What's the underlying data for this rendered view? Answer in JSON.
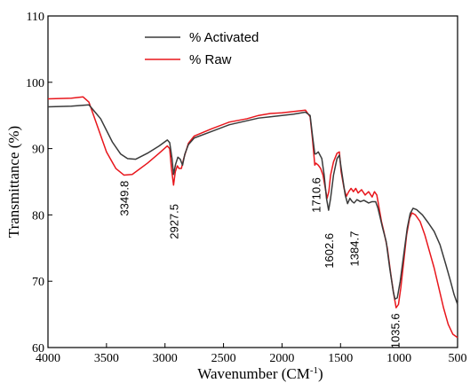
{
  "chart_data": {
    "type": "line",
    "xlabel": "Wavenumber (CM",
    "xlabel_sup": "-1",
    "xlabel_close": ")",
    "ylabel": "Transmittance (%)",
    "xlim": [
      4000,
      500
    ],
    "ylim": [
      60,
      110
    ],
    "x_reversed": true,
    "x_ticks": [
      "4000",
      "3500",
      "3000",
      "2500",
      "2000",
      "1500",
      "1000",
      "500"
    ],
    "y_ticks": [
      "60",
      "70",
      "80",
      "90",
      "100",
      "110"
    ],
    "grid": false,
    "legend_position": "top-center",
    "series": [
      {
        "name": "% Activated",
        "color": "#3a3a3a",
        "points": [
          [
            4000,
            96.3
          ],
          [
            3800,
            96.4
          ],
          [
            3650,
            96.6
          ],
          [
            3550,
            94.5
          ],
          [
            3450,
            91.0
          ],
          [
            3380,
            89.2
          ],
          [
            3320,
            88.5
          ],
          [
            3250,
            88.4
          ],
          [
            3150,
            89.3
          ],
          [
            3050,
            90.4
          ],
          [
            2980,
            91.3
          ],
          [
            2960,
            90.9
          ],
          [
            2940,
            88.5
          ],
          [
            2927,
            86.1
          ],
          [
            2910,
            87.6
          ],
          [
            2890,
            88.7
          ],
          [
            2870,
            88.4
          ],
          [
            2850,
            87.5
          ],
          [
            2830,
            89.2
          ],
          [
            2800,
            90.6
          ],
          [
            2750,
            91.6
          ],
          [
            2600,
            92.6
          ],
          [
            2450,
            93.6
          ],
          [
            2300,
            94.2
          ],
          [
            2200,
            94.6
          ],
          [
            2100,
            94.8
          ],
          [
            2000,
            95.0
          ],
          [
            1900,
            95.2
          ],
          [
            1800,
            95.5
          ],
          [
            1760,
            95.0
          ],
          [
            1740,
            92.0
          ],
          [
            1720,
            89.2
          ],
          [
            1710,
            89.2
          ],
          [
            1690,
            89.5
          ],
          [
            1660,
            88.5
          ],
          [
            1640,
            86.0
          ],
          [
            1620,
            82.5
          ],
          [
            1602,
            80.7
          ],
          [
            1585,
            82.5
          ],
          [
            1560,
            86.0
          ],
          [
            1530,
            88.5
          ],
          [
            1510,
            89.0
          ],
          [
            1490,
            86.5
          ],
          [
            1460,
            83.0
          ],
          [
            1440,
            81.7
          ],
          [
            1420,
            82.5
          ],
          [
            1400,
            82.0
          ],
          [
            1384,
            81.8
          ],
          [
            1360,
            82.3
          ],
          [
            1330,
            82.0
          ],
          [
            1300,
            82.2
          ],
          [
            1260,
            81.8
          ],
          [
            1230,
            82.0
          ],
          [
            1200,
            82.0
          ],
          [
            1180,
            81.0
          ],
          [
            1160,
            79.5
          ],
          [
            1140,
            78.0
          ],
          [
            1110,
            76.0
          ],
          [
            1080,
            72.0
          ],
          [
            1050,
            68.5
          ],
          [
            1035,
            67.3
          ],
          [
            1015,
            67.5
          ],
          [
            990,
            70.0
          ],
          [
            960,
            74.0
          ],
          [
            930,
            78.0
          ],
          [
            905,
            80.2
          ],
          [
            880,
            81.0
          ],
          [
            850,
            80.8
          ],
          [
            800,
            80.0
          ],
          [
            750,
            78.8
          ],
          [
            700,
            77.5
          ],
          [
            650,
            75.5
          ],
          [
            600,
            72.5
          ],
          [
            560,
            70.0
          ],
          [
            530,
            68.0
          ],
          [
            500,
            66.5
          ]
        ]
      },
      {
        "name": "% Raw",
        "color": "#e8161c",
        "points": [
          [
            4000,
            97.5
          ],
          [
            3800,
            97.6
          ],
          [
            3700,
            97.8
          ],
          [
            3650,
            97.0
          ],
          [
            3580,
            93.5
          ],
          [
            3500,
            89.5
          ],
          [
            3420,
            87.0
          ],
          [
            3350,
            86.0
          ],
          [
            3280,
            86.1
          ],
          [
            3150,
            87.8
          ],
          [
            3050,
            89.3
          ],
          [
            2980,
            90.4
          ],
          [
            2960,
            90.0
          ],
          [
            2945,
            87.0
          ],
          [
            2927,
            84.5
          ],
          [
            2912,
            86.5
          ],
          [
            2895,
            87.4
          ],
          [
            2880,
            87.0
          ],
          [
            2860,
            87.0
          ],
          [
            2840,
            88.5
          ],
          [
            2800,
            90.8
          ],
          [
            2750,
            91.9
          ],
          [
            2600,
            93.0
          ],
          [
            2450,
            94.0
          ],
          [
            2300,
            94.5
          ],
          [
            2200,
            95.0
          ],
          [
            2100,
            95.3
          ],
          [
            2000,
            95.4
          ],
          [
            1900,
            95.6
          ],
          [
            1800,
            95.8
          ],
          [
            1760,
            94.8
          ],
          [
            1740,
            91.5
          ],
          [
            1720,
            87.5
          ],
          [
            1710,
            87.8
          ],
          [
            1690,
            87.5
          ],
          [
            1670,
            87.0
          ],
          [
            1650,
            86.0
          ],
          [
            1630,
            84.0
          ],
          [
            1615,
            82.5
          ],
          [
            1600,
            83.5
          ],
          [
            1585,
            86.0
          ],
          [
            1560,
            88.0
          ],
          [
            1530,
            89.3
          ],
          [
            1510,
            89.5
          ],
          [
            1495,
            86.5
          ],
          [
            1470,
            84.0
          ],
          [
            1450,
            82.8
          ],
          [
            1430,
            83.5
          ],
          [
            1410,
            84.0
          ],
          [
            1390,
            83.5
          ],
          [
            1370,
            84.0
          ],
          [
            1350,
            83.3
          ],
          [
            1320,
            83.8
          ],
          [
            1290,
            83.0
          ],
          [
            1260,
            83.5
          ],
          [
            1230,
            82.7
          ],
          [
            1210,
            83.5
          ],
          [
            1190,
            83.0
          ],
          [
            1170,
            81.0
          ],
          [
            1150,
            79.0
          ],
          [
            1130,
            77.5
          ],
          [
            1100,
            75.0
          ],
          [
            1070,
            71.0
          ],
          [
            1045,
            68.0
          ],
          [
            1025,
            66.0
          ],
          [
            1005,
            66.5
          ],
          [
            985,
            69.0
          ],
          [
            960,
            73.0
          ],
          [
            935,
            77.0
          ],
          [
            910,
            79.5
          ],
          [
            890,
            80.3
          ],
          [
            860,
            80.0
          ],
          [
            820,
            79.0
          ],
          [
            780,
            77.0
          ],
          [
            740,
            74.5
          ],
          [
            700,
            72.0
          ],
          [
            660,
            69.0
          ],
          [
            620,
            66.0
          ],
          [
            580,
            63.5
          ],
          [
            540,
            62.0
          ],
          [
            500,
            61.5
          ]
        ]
      }
    ],
    "annotations": [
      {
        "text": "3349.8",
        "x": 3349.8,
        "y": 82.5
      },
      {
        "text": "2927.5",
        "x": 2927.5,
        "y": 79.0
      },
      {
        "text": "1710.6",
        "x": 1710.6,
        "y": 83.0
      },
      {
        "text": "1602.6",
        "x": 1602.6,
        "y": 74.6
      },
      {
        "text": "1384.7",
        "x": 1384.7,
        "y": 74.9
      },
      {
        "text": "1035.6",
        "x": 1035.6,
        "y": 62.5
      }
    ]
  }
}
